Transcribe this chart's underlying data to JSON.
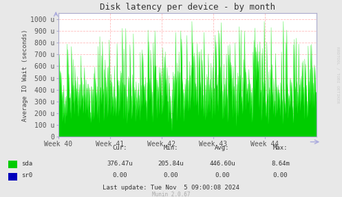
{
  "title": "Disk latency per device - by month",
  "ylabel": "Average IO Wait (seconds)",
  "background_color": "#e8e8e8",
  "plot_bg_color": "#ffffff",
  "grid_color": "#ffaaaa",
  "line_color_sda": "#00ee00",
  "fill_color_sda": "#00cc00",
  "x_tick_labels": [
    "Week 40",
    "Week 41",
    "Week 42",
    "Week 43",
    "Week 44"
  ],
  "y_tick_labels": [
    "0",
    "100 u",
    "200 u",
    "300 u",
    "400 u",
    "500 u",
    "600 u",
    "700 u",
    "800 u",
    "900 u",
    "1000 u"
  ],
  "y_tick_vals": [
    0,
    100,
    200,
    300,
    400,
    500,
    600,
    700,
    800,
    900,
    1000
  ],
  "ylim": [
    0,
    1050
  ],
  "legend_entries": [
    {
      "label": "sda",
      "color": "#00cc00"
    },
    {
      "label": "sr0",
      "color": "#0000bb"
    }
  ],
  "footer_cols": [
    "Cur:",
    "Min:",
    "Avg:",
    "Max:"
  ],
  "footer_sda": [
    "376.47u",
    "205.84u",
    "446.60u",
    "8.64m"
  ],
  "footer_sr0": [
    "0.00",
    "0.00",
    "0.00",
    "0.00"
  ],
  "last_update": "Last update: Tue Nov  5 09:00:08 2024",
  "munin_version": "Munin 2.0.67",
  "rrdtool_label": "RRDTOOL / TOBI OETIKER",
  "num_points": 600,
  "seed": 42
}
